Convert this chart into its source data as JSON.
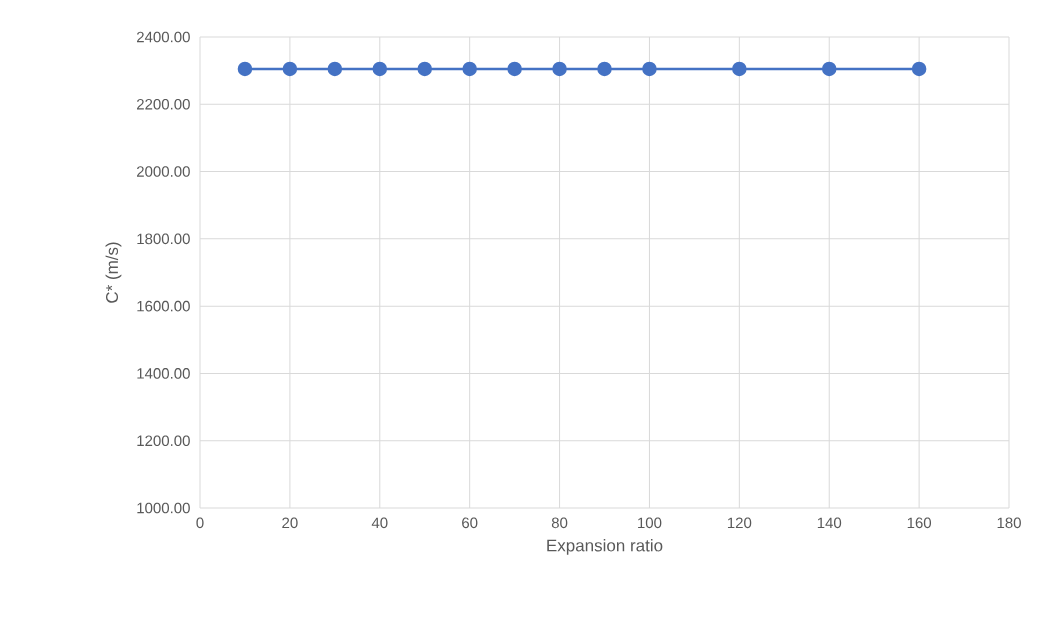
{
  "chart_data": {
    "type": "line",
    "xlabel": "Expansion ratio",
    "ylabel": "C* (m/s)",
    "x": [
      10,
      20,
      30,
      40,
      50,
      60,
      70,
      80,
      90,
      100,
      120,
      140,
      160
    ],
    "series": [
      {
        "color": "#4472c4",
        "values": [
          2305,
          2305,
          2305,
          2305,
          2305,
          2305,
          2305,
          2305,
          2305,
          2305,
          2305,
          2305,
          2305
        ]
      }
    ],
    "xlim": [
      0,
      180
    ],
    "xticks": [
      0,
      20,
      40,
      60,
      80,
      100,
      120,
      140,
      160,
      180
    ],
    "ylim": [
      1000,
      2400
    ],
    "yticks": [
      {
        "value": 1000,
        "label": "1000.00"
      },
      {
        "value": 1200,
        "label": "1200.00"
      },
      {
        "value": 1400,
        "label": "1400.00"
      },
      {
        "value": 1600,
        "label": "1600.00"
      },
      {
        "value": 1800,
        "label": "1800.00"
      },
      {
        "value": 2000,
        "label": "2000.00"
      },
      {
        "value": 2200,
        "label": "2200.00"
      },
      {
        "value": 2400,
        "label": "2400.00"
      }
    ],
    "grid": true,
    "marker": "circle",
    "line_style": "solid"
  }
}
